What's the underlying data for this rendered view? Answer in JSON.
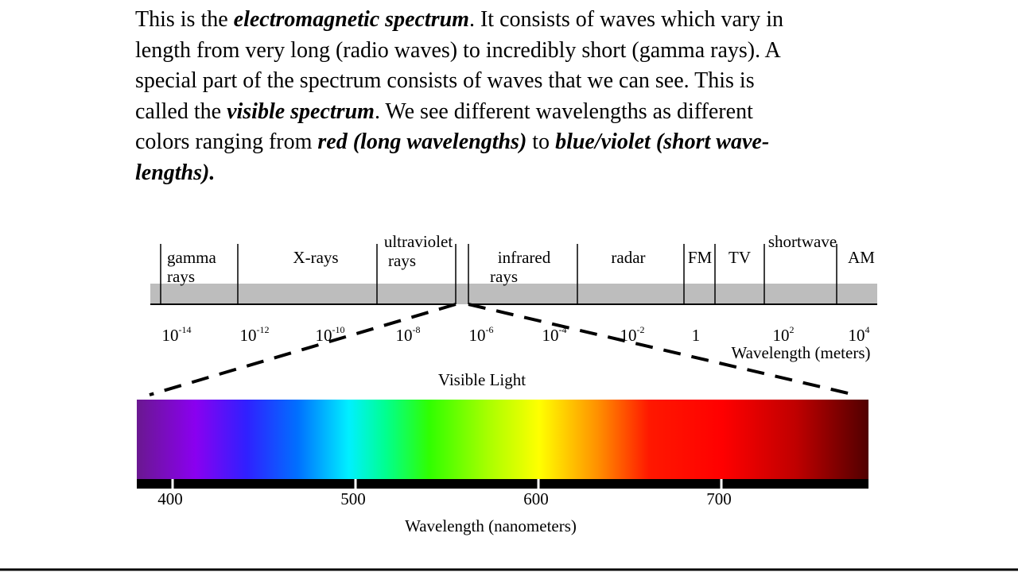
{
  "text": {
    "lines": [
      [
        "This is the ",
        "electromagnetic spectrum",
        ". It consists of waves which vary in"
      ],
      [
        "length from very long (radio waves) to incredibly short (gamma rays). A"
      ],
      [
        "special part of the spectrum consists of waves that we can see. This is"
      ],
      [
        "called the ",
        "visible spectrum",
        ". We see different wavelengths as different"
      ],
      [
        "colors ranging from ",
        "red (long wavelengths)",
        " to ",
        "blue/violet (short wave-"
      ],
      [
        "lengths)."
      ]
    ]
  },
  "em_spectrum": {
    "bands": [
      {
        "label": [
          "gamma",
          "rays"
        ]
      },
      {
        "label": [
          "X-rays"
        ]
      },
      {
        "label": [
          "ultraviolet",
          "rays"
        ]
      },
      {
        "label": [
          "infrared",
          "rays"
        ]
      },
      {
        "label": [
          "radar"
        ]
      },
      {
        "label": [
          "FM"
        ]
      },
      {
        "label": [
          "TV"
        ]
      },
      {
        "label": [
          "shortwave"
        ]
      },
      {
        "label": [
          "AM"
        ]
      }
    ],
    "ticks": [
      {
        "base": "10",
        "exponent": "-14"
      },
      {
        "base": "10",
        "exponent": "-12"
      },
      {
        "base": "10",
        "exponent": "-10"
      },
      {
        "base": "10",
        "exponent": "-8"
      },
      {
        "base": "10",
        "exponent": "-6"
      },
      {
        "base": "10",
        "exponent": "-4"
      },
      {
        "base": "10",
        "exponent": "-2"
      },
      {
        "base": "1"
      },
      {
        "base": "10",
        "exponent": "2"
      },
      {
        "base": "10",
        "exponent": "4"
      }
    ],
    "axis_label": "Wavelength (meters)"
  },
  "visible": {
    "title": "Visible Light",
    "ticks": [
      400,
      500,
      600,
      700
    ],
    "axis_label": "Wavelength (nanometers)"
  }
}
